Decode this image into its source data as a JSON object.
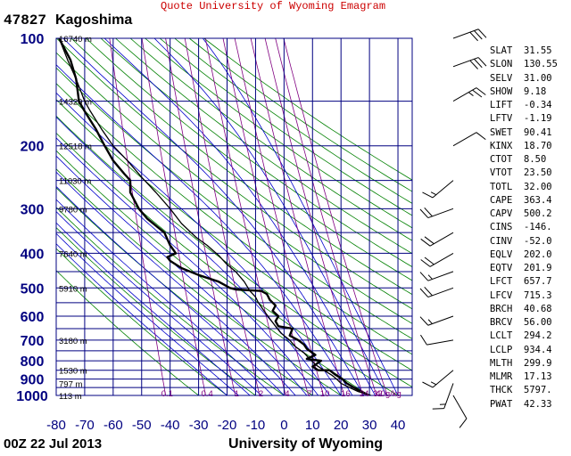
{
  "header": {
    "caption": "Quote University of Wyoming Emagram",
    "station_id": "47827",
    "station_name": "Kagoshima"
  },
  "footer": {
    "time": "00Z 22 Jul 2013",
    "organization": "University of Wyoming"
  },
  "colors": {
    "grid": "#000080",
    "dry_adiabat": "#008000",
    "moist_adiabat": "#0000cc",
    "mixing_ratio": "#800080",
    "temperature": "#000000",
    "caption": "#cc0000"
  },
  "chart_data": {
    "type": "line",
    "xlabel": "",
    "ylabel": "",
    "xlim": [
      -80,
      45
    ],
    "ylim_log_pressure": [
      1000,
      100
    ],
    "x_ticks": [
      -80,
      -70,
      -60,
      -50,
      -40,
      -30,
      -20,
      -10,
      0,
      10,
      20,
      30,
      40
    ],
    "x_tick_labels": [
      "-80",
      "-70",
      "-60",
      "-50",
      "-40",
      "-30",
      "-20",
      "-10",
      "0",
      "10",
      "20",
      "30",
      "40"
    ],
    "pressure_ticks": [
      100,
      200,
      300,
      400,
      500,
      600,
      700,
      800,
      900,
      1000
    ],
    "pressure_tick_labels": [
      "100",
      "200",
      "300",
      "400",
      "500",
      "600",
      "700",
      "800",
      "900",
      "1000"
    ],
    "height_labels": [
      {
        "p": 100,
        "text": "16740 m"
      },
      {
        "p": 150,
        "text": "14320 m"
      },
      {
        "p": 200,
        "text": "12518 m"
      },
      {
        "p": 250,
        "text": "11030 m"
      },
      {
        "p": 300,
        "text": "9780 m"
      },
      {
        "p": 400,
        "text": "7640 m"
      },
      {
        "p": 500,
        "text": "5910 m"
      },
      {
        "p": 700,
        "text": "3180 m"
      },
      {
        "p": 850,
        "text": "1530 m"
      },
      {
        "p": 925,
        "text": "797 m"
      },
      {
        "p": 1000,
        "text": "113 m"
      }
    ],
    "mixing_ratio_labels": [
      "0.1",
      "0.4",
      "1",
      "2",
      "4",
      "7",
      "10",
      "16",
      "24",
      "32",
      "40g/kg"
    ],
    "grid": true,
    "legend": "none",
    "series": [
      {
        "points": [
          [
            29.8,
            1000
          ],
          [
            27,
            975
          ],
          [
            24.5,
            950
          ],
          [
            22,
            925
          ],
          [
            20.5,
            900
          ],
          [
            18,
            875
          ],
          [
            16,
            850
          ],
          [
            12,
            850
          ],
          [
            10,
            830
          ],
          [
            13,
            800
          ],
          [
            8,
            790
          ],
          [
            11,
            770
          ],
          [
            8,
            740
          ],
          [
            7,
            720
          ],
          [
            5,
            700
          ],
          [
            2,
            680
          ],
          [
            3,
            650
          ],
          [
            -2,
            640
          ],
          [
            -3,
            620
          ],
          [
            -2,
            600
          ],
          [
            -4,
            580
          ],
          [
            -3,
            560
          ],
          [
            -5,
            540
          ],
          [
            -6,
            520
          ],
          [
            -8,
            510
          ],
          [
            -17,
            505
          ],
          [
            -19,
            500
          ],
          [
            -23,
            480
          ],
          [
            -30,
            460
          ],
          [
            -36,
            440
          ],
          [
            -40,
            420
          ],
          [
            -41,
            410
          ],
          [
            -38,
            400
          ],
          [
            -40,
            380
          ],
          [
            -42,
            350
          ],
          [
            -48,
            320
          ],
          [
            -51,
            300
          ],
          [
            -54,
            270
          ],
          [
            -54,
            250
          ],
          [
            -56,
            240
          ],
          [
            -60,
            220
          ],
          [
            -63,
            200
          ],
          [
            -66,
            180
          ],
          [
            -70,
            160
          ],
          [
            -72,
            150
          ],
          [
            -73,
            130
          ],
          [
            -75,
            115
          ],
          [
            -79,
            100
          ]
        ]
      },
      {
        "points": [
          [
            30.5,
            1000
          ],
          [
            26,
            975
          ],
          [
            23,
            950
          ],
          [
            20,
            925
          ],
          [
            18.5,
            900
          ],
          [
            17,
            880
          ],
          [
            15,
            860
          ],
          [
            13,
            840
          ],
          [
            11,
            820
          ],
          [
            9,
            790
          ],
          [
            7,
            760
          ],
          [
            4,
            730
          ],
          [
            2,
            700
          ],
          [
            -1,
            670
          ],
          [
            -3,
            640
          ],
          [
            -5,
            610
          ],
          [
            -7,
            580
          ],
          [
            -9,
            550
          ],
          [
            -10,
            530
          ],
          [
            -12,
            510
          ],
          [
            -14,
            480
          ],
          [
            -17,
            450
          ],
          [
            -20,
            430
          ],
          [
            -23,
            405
          ],
          [
            -27,
            380
          ],
          [
            -31,
            360
          ],
          [
            -36,
            330
          ],
          [
            -40,
            300
          ],
          [
            -45,
            270
          ],
          [
            -50,
            245
          ],
          [
            -55,
            220
          ],
          [
            -60,
            200
          ],
          [
            -64,
            180
          ],
          [
            -68,
            160
          ],
          [
            -70,
            150
          ],
          [
            -73,
            130
          ],
          [
            -76,
            115
          ],
          [
            -79,
            100
          ]
        ]
      }
    ]
  },
  "indices": [
    {
      "name": "SLAT",
      "value": "31.55"
    },
    {
      "name": "SLON",
      "value": "130.55"
    },
    {
      "name": "SELV",
      "value": "31.00"
    },
    {
      "name": "SHOW",
      "value": "9.18"
    },
    {
      "name": "LIFT",
      "value": "-0.34"
    },
    {
      "name": "LFTV",
      "value": "-1.19"
    },
    {
      "name": "SWET",
      "value": "90.41"
    },
    {
      "name": "KINX",
      "value": "18.70"
    },
    {
      "name": "CTOT",
      "value": "8.50"
    },
    {
      "name": "VTOT",
      "value": "23.50"
    },
    {
      "name": "TOTL",
      "value": "32.00"
    },
    {
      "name": "CAPE",
      "value": "363.4"
    },
    {
      "name": "CAPV",
      "value": "500.2"
    },
    {
      "name": "CINS",
      "value": "-146."
    },
    {
      "name": "CINV",
      "value": "-52.0"
    },
    {
      "name": "EQLV",
      "value": "202.0"
    },
    {
      "name": "EQTV",
      "value": "201.9"
    },
    {
      "name": "LFCT",
      "value": "657.7"
    },
    {
      "name": "LFCV",
      "value": "715.3"
    },
    {
      "name": "BRCH",
      "value": "40.68"
    },
    {
      "name": "BRCV",
      "value": "56.00"
    },
    {
      "name": "LCLT",
      "value": "294.2"
    },
    {
      "name": "LCLP",
      "value": "934.4"
    },
    {
      "name": "MLTH",
      "value": "299.9"
    },
    {
      "name": "MLMR",
      "value": "17.13"
    },
    {
      "name": "THCK",
      "value": "5797."
    },
    {
      "name": "PWAT",
      "value": "42.33"
    }
  ],
  "wind_barbs": [
    {
      "p": 1000,
      "dir": 150,
      "spd": 10
    },
    {
      "p": 925,
      "dir": 200,
      "spd": 15
    },
    {
      "p": 850,
      "dir": 230,
      "spd": 15
    },
    {
      "p": 700,
      "dir": 260,
      "spd": 10
    },
    {
      "p": 600,
      "dir": 250,
      "spd": 15
    },
    {
      "p": 500,
      "dir": 250,
      "spd": 20
    },
    {
      "p": 450,
      "dir": 250,
      "spd": 15
    },
    {
      "p": 400,
      "dir": 240,
      "spd": 20
    },
    {
      "p": 350,
      "dir": 240,
      "spd": 20
    },
    {
      "p": 300,
      "dir": 250,
      "spd": 20
    },
    {
      "p": 250,
      "dir": 230,
      "spd": 15
    },
    {
      "p": 200,
      "dir": 60,
      "spd": 10
    },
    {
      "p": 150,
      "dir": 60,
      "spd": 25
    },
    {
      "p": 120,
      "dir": 70,
      "spd": 30
    },
    {
      "p": 100,
      "dir": 70,
      "spd": 30
    }
  ]
}
